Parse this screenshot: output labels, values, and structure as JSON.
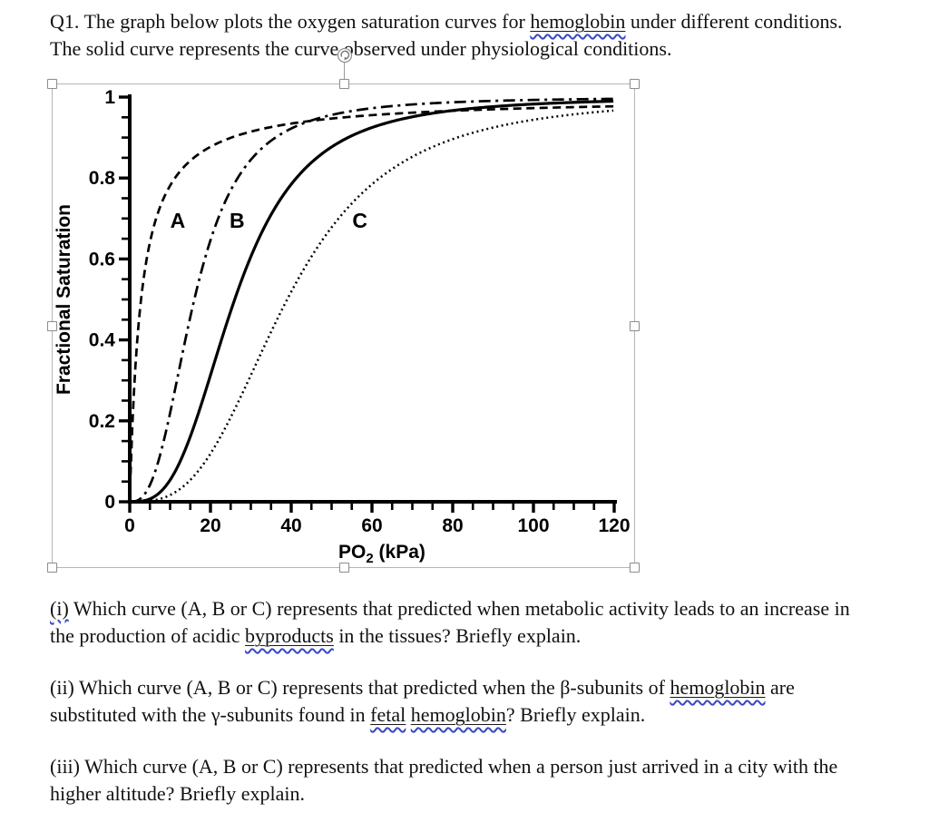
{
  "document": {
    "title": {
      "lines": [
        [
          {
            "t": "Q1. The graph below plots the oxygen saturation curves for "
          },
          {
            "t": "hemoglobin",
            "style": "flagged"
          },
          {
            "t": " under different conditions."
          }
        ],
        [
          {
            "t": "The solid curve represents the curve observed under physiological conditions."
          }
        ]
      ]
    },
    "questions": [
      {
        "id": "i",
        "lines": [
          [
            {
              "t": "(i)",
              "style": "squiggle"
            },
            {
              "t": " Which curve (A, B or C) represents that predicted when metabolic activity leads to an increase in"
            }
          ],
          [
            {
              "t": "the production of acidic "
            },
            {
              "t": "byproducts",
              "style": "flagged"
            },
            {
              "t": " in the tissues? Briefly explain."
            }
          ]
        ]
      },
      {
        "id": "ii",
        "lines": [
          [
            {
              "t": "(ii) Which curve (A, B or C) represents that predicted when the β-subunits of "
            },
            {
              "t": "hemoglobin",
              "style": "flagged"
            },
            {
              "t": " are"
            }
          ],
          [
            {
              "t": "substituted with the γ-subunits found in "
            },
            {
              "t": "fetal",
              "style": "flagged"
            },
            {
              "t": " "
            },
            {
              "t": "hemoglobin",
              "style": "flagged"
            },
            {
              "t": "? Briefly explain."
            }
          ]
        ]
      },
      {
        "id": "iii",
        "lines": [
          [
            {
              "t": "(iii) Which curve (A, B or C) represents that predicted when a person just arrived in a city with the"
            }
          ],
          [
            {
              "t": "higher altitude? Briefly explain."
            }
          ]
        ]
      }
    ]
  },
  "chart_data": {
    "type": "line",
    "title": "",
    "xlabel": "PO2 (kPa)",
    "xlabel_parts": [
      {
        "t": "PO"
      },
      {
        "t": "2",
        "sub": true
      },
      {
        "t": " (kPa)"
      }
    ],
    "ylabel": "Fractional Saturation",
    "xlim": [
      0,
      120
    ],
    "ylim": [
      0,
      1
    ],
    "x_ticks": [
      {
        "v": 0,
        "label": "0"
      },
      {
        "v": 20,
        "label": "20"
      },
      {
        "v": 40,
        "label": "40"
      },
      {
        "v": 60,
        "label": "60"
      },
      {
        "v": 80,
        "label": "80"
      },
      {
        "v": 100,
        "label": "100"
      },
      {
        "v": 120,
        "label": "120"
      }
    ],
    "y_ticks": [
      {
        "v": 1,
        "label": "1"
      },
      {
        "v": 0.8,
        "label": "0.8"
      },
      {
        "v": 0.6,
        "label": "0.6"
      },
      {
        "v": 0.4,
        "label": "0.4"
      },
      {
        "v": 0.2,
        "label": "0.2"
      },
      {
        "v": 0,
        "label": "0"
      }
    ],
    "x_minor_step": 5,
    "y_minor_step": 0.05,
    "grid": false,
    "legend": "inline-curve-labels",
    "sample_x": [
      0,
      5,
      10,
      15,
      20,
      30,
      40,
      60,
      80,
      100,
      120
    ],
    "series": [
      {
        "name": "curve-A",
        "label": "A",
        "line_style": "dashed",
        "model": "hill",
        "hill_n": 1.0,
        "p50_kPa": 2.8,
        "values": [
          0,
          0.641,
          0.781,
          0.843,
          0.877,
          0.915,
          0.935,
          0.955,
          0.966,
          0.973,
          0.977
        ],
        "label_x": 11.9,
        "label_y": 0.695
      },
      {
        "name": "curve-B",
        "label": "B",
        "line_style": "dashdot",
        "model": "hill",
        "hill_n": 2.7,
        "p50_kPa": 16,
        "values": [
          0,
          0.042,
          0.219,
          0.457,
          0.646,
          0.845,
          0.922,
          0.973,
          0.987,
          0.993,
          0.996
        ],
        "label_x": 26.6,
        "label_y": 0.695
      },
      {
        "name": "physiological-solid-curve",
        "label": "",
        "line_style": "solid",
        "model": "hill",
        "hill_n": 3.0,
        "p50_kPa": 26,
        "values": [
          0,
          0.007,
          0.054,
          0.161,
          0.313,
          0.606,
          0.785,
          0.925,
          0.967,
          0.983,
          0.99
        ]
      },
      {
        "name": "curve-C",
        "label": "C",
        "line_style": "dotted",
        "model": "hill",
        "hill_n": 3.0,
        "p50_kPa": 39,
        "values": [
          0,
          0.002,
          0.017,
          0.054,
          0.119,
          0.313,
          0.519,
          0.785,
          0.896,
          0.944,
          0.967
        ],
        "label_x": 57,
        "label_y": 0.695
      }
    ],
    "colors": {
      "ink": "#000000"
    }
  },
  "selection_ui": {
    "handles": [
      "nw",
      "n",
      "ne",
      "w",
      "e",
      "sw",
      "s",
      "se"
    ],
    "rotation_handle": true,
    "border_color": "#b5b5b5"
  }
}
